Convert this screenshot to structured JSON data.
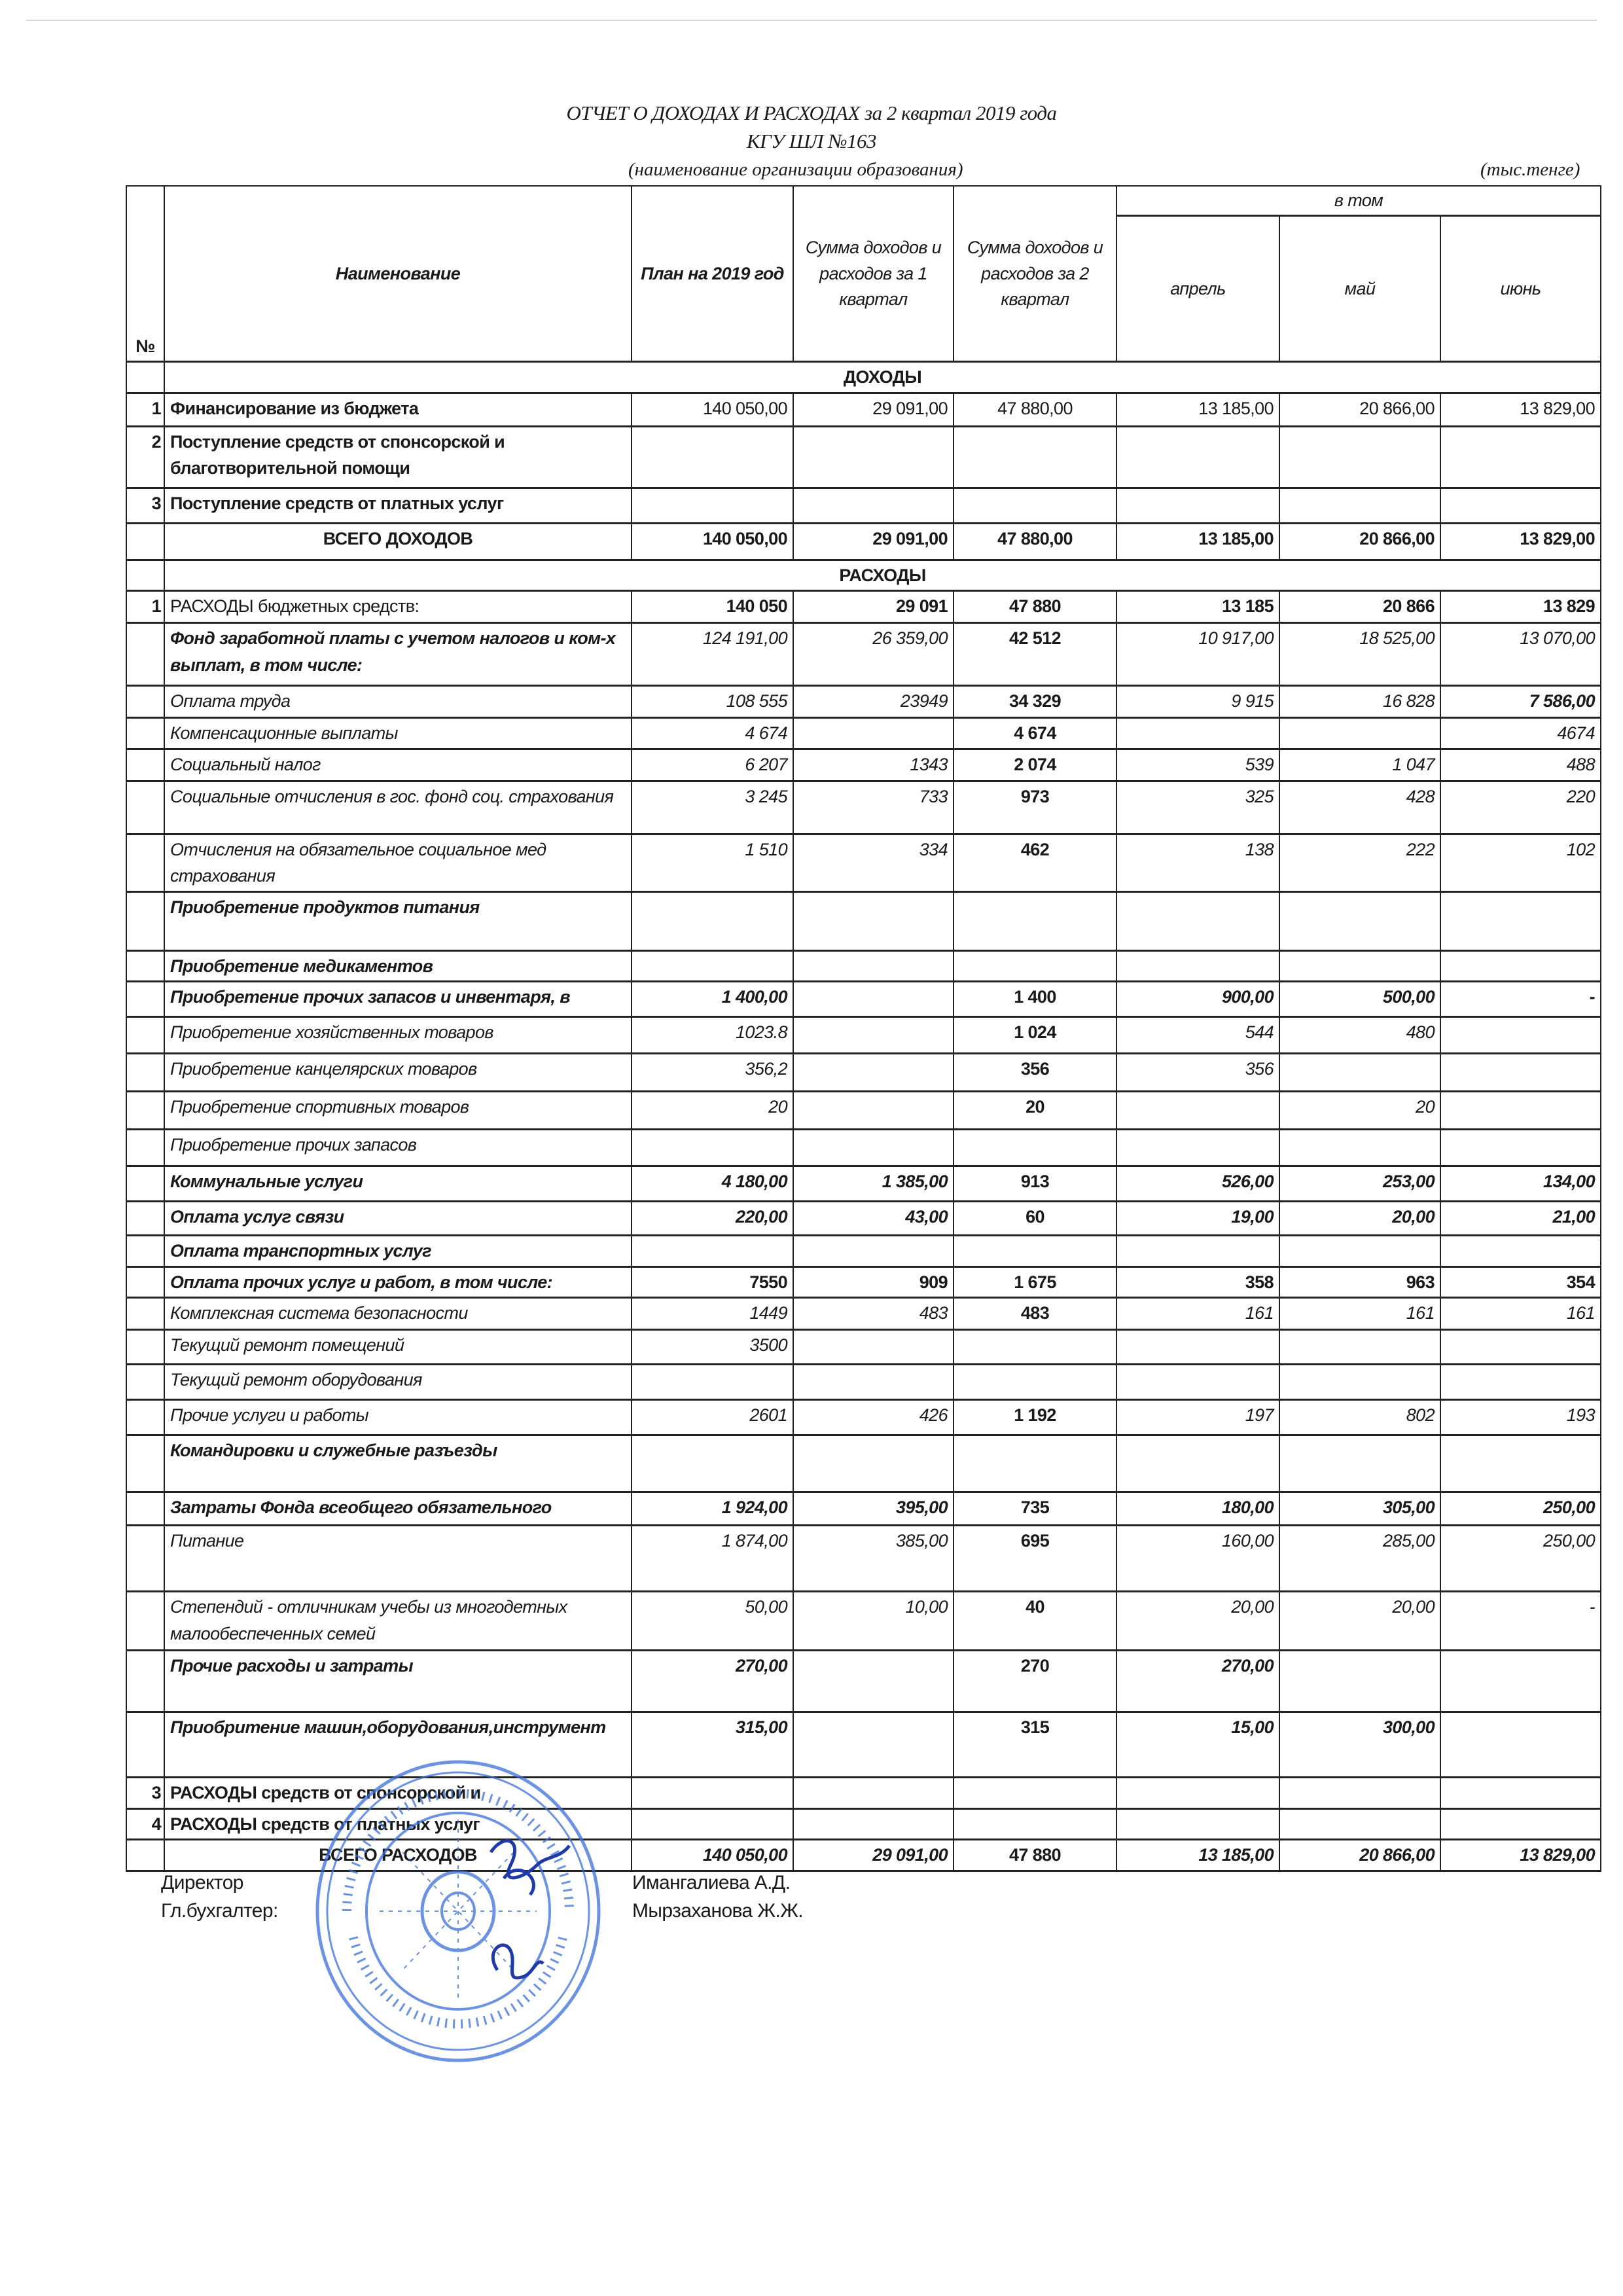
{
  "document": {
    "title": "ОТЧЕТ О ДОХОДАХ И РАСХОДАХ за 2 квартал 2019 года",
    "organization": "КГУ ШЛ №163",
    "org_caption": "(наименование организации образования)",
    "unit": "(тыс.тенге)"
  },
  "table": {
    "headers": {
      "num": "№",
      "name": "Наименование",
      "plan": "План на 2019 год",
      "q1": "Сумма доходов и расходов за  1 квартал",
      "q2": "Сумма доходов и расходов за  2 квартал",
      "group": "в том",
      "m1": "апрель",
      "m2": "май",
      "m3": "июнь"
    },
    "rows": [
      {
        "section": "ДОХОДЫ"
      },
      {
        "num": "1",
        "label": "Финансирование из бюджета",
        "values": [
          "140 050,00",
          "29 091,00",
          "47 880,00",
          "13 185,00",
          "20 866,00",
          "13 829,00"
        ]
      },
      {
        "num": "2",
        "label": "Поступление средств от спонсорской и благотворительной помощи",
        "values": [
          "",
          "",
          "",
          "",
          "",
          ""
        ]
      },
      {
        "num": "3",
        "label": "Поступление средств от платных услуг",
        "values": [
          "",
          "",
          "",
          "",
          "",
          ""
        ]
      },
      {
        "num": "",
        "label": "ВСЕГО ДОХОДОВ",
        "values": [
          "140 050,00",
          "29 091,00",
          "47 880,00",
          "13 185,00",
          "20 866,00",
          "13 829,00"
        ]
      },
      {
        "section": "РАСХОДЫ"
      },
      {
        "num": "1",
        "label": "РАСХОДЫ бюджетных средств:",
        "values": [
          "140 050",
          "29 091",
          "47 880",
          "13 185",
          "20 866",
          "13 829"
        ]
      },
      {
        "num": "",
        "label": "Фонд заработной платы с учетом налогов и ком-х выплат, в том числе:",
        "values": [
          "124 191,00",
          "26 359,00",
          "42 512",
          "10 917,00",
          "18 525,00",
          "13 070,00"
        ]
      },
      {
        "num": "",
        "label": "Оплата труда",
        "values": [
          "108 555",
          "23949",
          "34 329",
          "9 915",
          "16 828",
          "7 586,00"
        ]
      },
      {
        "num": "",
        "label": "Компенсационные выплаты",
        "values": [
          "4 674",
          "",
          "4 674",
          "",
          "",
          "4674"
        ]
      },
      {
        "num": "",
        "label": "Социальный налог",
        "values": [
          "6 207",
          "1343",
          "2 074",
          "539",
          "1 047",
          "488"
        ]
      },
      {
        "num": "",
        "label": "Социальные отчисления в гос. фонд соц. страхования",
        "values": [
          "3 245",
          "733",
          "973",
          "325",
          "428",
          "220"
        ]
      },
      {
        "num": "",
        "label": "Отчисления  на обязательное  социальное мед страхования",
        "values": [
          "1 510",
          "334",
          "462",
          "138",
          "222",
          "102"
        ]
      },
      {
        "num": "",
        "label": "Приобретение продуктов питания",
        "values": [
          "",
          "",
          "",
          "",
          "",
          ""
        ]
      },
      {
        "num": "",
        "label": "Приобретение медикаментов",
        "values": [
          "",
          "",
          "",
          "",
          "",
          ""
        ]
      },
      {
        "num": "",
        "label": "Приобретение прочих запасов и инвентаря, в",
        "values": [
          "1 400,00",
          "",
          "1 400",
          "900,00",
          "500,00",
          "-"
        ]
      },
      {
        "num": "",
        "label": "Приобретение хозяйственных товаров",
        "values": [
          "1023.8",
          "",
          "1 024",
          "544",
          "480",
          ""
        ]
      },
      {
        "num": "",
        "label": "Приобретение канцелярских товаров",
        "values": [
          "356,2",
          "",
          "356",
          "356",
          "",
          ""
        ]
      },
      {
        "num": "",
        "label": "Приобретение спортивных товаров",
        "values": [
          "20",
          "",
          "20",
          "",
          "20",
          ""
        ]
      },
      {
        "num": "",
        "label": "Приобретение прочих запасов",
        "values": [
          "",
          "",
          "",
          "",
          "",
          ""
        ]
      },
      {
        "num": "",
        "label": "Коммунальные услуги",
        "values": [
          "4 180,00",
          "1 385,00",
          "913",
          "526,00",
          "253,00",
          "134,00"
        ]
      },
      {
        "num": "",
        "label": "Оплата услуг связи",
        "values": [
          "220,00",
          "43,00",
          "60",
          "19,00",
          "20,00",
          "21,00"
        ]
      },
      {
        "num": "",
        "label": "Оплата транспортных услуг",
        "values": [
          "",
          "",
          "",
          "",
          "",
          ""
        ]
      },
      {
        "num": "",
        "label": "Оплата прочих услуг и работ, в том числе:",
        "values": [
          "7550",
          "909",
          "1 675",
          "358",
          "963",
          "354"
        ]
      },
      {
        "num": "",
        "label": "Комплексная система безопасности",
        "values": [
          "1449",
          "483",
          "483",
          "161",
          "161",
          "161"
        ]
      },
      {
        "num": "",
        "label": "Текущий ремонт помещений",
        "values": [
          "3500",
          "",
          "",
          "",
          "",
          ""
        ]
      },
      {
        "num": "",
        "label": "Текущий ремонт оборудования",
        "values": [
          "",
          "",
          "",
          "",
          "",
          ""
        ]
      },
      {
        "num": "",
        "label": "Прочие услуги и работы",
        "values": [
          "2601",
          "426",
          "1 192",
          "197",
          "802",
          "193"
        ]
      },
      {
        "num": "",
        "label": "Командировки и служебные разъезды",
        "values": [
          "",
          "",
          "",
          "",
          "",
          ""
        ]
      },
      {
        "num": "",
        "label": "Затраты Фонда всеобщего обязательного",
        "values": [
          "1 924,00",
          "395,00",
          "735",
          "180,00",
          "305,00",
          "250,00"
        ]
      },
      {
        "num": "",
        "label": "Питание",
        "values": [
          "1 874,00",
          "385,00",
          "695",
          "160,00",
          "285,00",
          "250,00"
        ]
      },
      {
        "num": "",
        "label": "Степендий - отличникам учебы из многодетных  малообеспеченных семей",
        "values": [
          "50,00",
          "10,00",
          "40",
          "20,00",
          "20,00",
          "-"
        ]
      },
      {
        "num": "",
        "label": "Прочие расходы и затраты",
        "values": [
          "270,00",
          "",
          "270",
          "270,00",
          "",
          ""
        ]
      },
      {
        "num": "",
        "label": "Приобритение машин,оборудования,инструмент",
        "values": [
          "315,00",
          "",
          "315",
          "15,00",
          "300,00",
          ""
        ]
      },
      {
        "num": "3",
        "label": "РАСХОДЫ средств от спонсорской и",
        "values": [
          "",
          "",
          "",
          "",
          "",
          ""
        ]
      },
      {
        "num": "4",
        "label": "РАСХОДЫ  средств от платных услуг",
        "values": [
          "",
          "",
          "",
          "",
          "",
          ""
        ]
      },
      {
        "num": "",
        "label": "ВСЕГО РАСХОДОВ",
        "values": [
          "140 050,00",
          "29 091,00",
          "47 880",
          "13 185,00",
          "20 866,00",
          "13 829,00"
        ]
      }
    ]
  },
  "signatures": {
    "director_label": "Директор",
    "director_name": "Имангалиева А.Д.",
    "accountant_label": "Гл.бухгалтер:",
    "accountant_name": "Мырзаханова Ж.Ж."
  },
  "stamp": {
    "color": "#3a6fd8"
  }
}
